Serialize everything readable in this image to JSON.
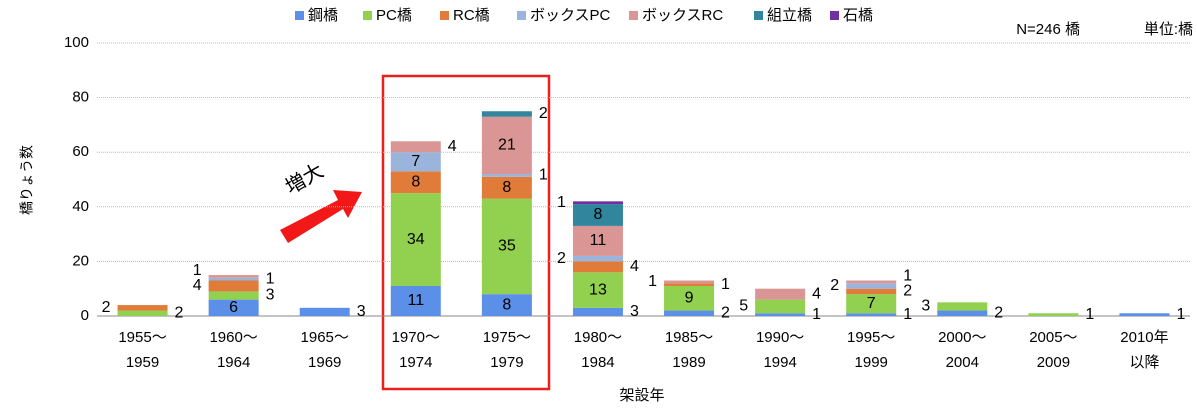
{
  "chart_data": {
    "type": "stacked-bar",
    "y_axis_label": "橋りょう数",
    "x_axis_label": "架設年",
    "annotations": [
      "N=246 橋",
      "単位:橋",
      "増大"
    ],
    "categories": [
      [
        "1955〜",
        "1959"
      ],
      [
        "1960〜",
        "1964"
      ],
      [
        "1965〜",
        "1969"
      ],
      [
        "1970〜",
        "1974"
      ],
      [
        "1975〜",
        "1979"
      ],
      [
        "1980〜",
        "1984"
      ],
      [
        "1985〜",
        "1989"
      ],
      [
        "1990〜",
        "1994"
      ],
      [
        "1995〜",
        "1999"
      ],
      [
        "2000〜",
        "2004"
      ],
      [
        "2005〜",
        "2009"
      ],
      [
        "2010年",
        "以降"
      ]
    ],
    "series": [
      {
        "name": "鋼橋",
        "color": "#5b8fe8",
        "values": [
          null,
          6,
          3,
          11,
          8,
          3,
          2,
          1,
          1,
          2,
          null,
          1
        ]
      },
      {
        "name": "PC橋",
        "color": "#92d050",
        "values": [
          2,
          3,
          null,
          34,
          35,
          13,
          9,
          5,
          7,
          3,
          1,
          null
        ]
      },
      {
        "name": "RC橋",
        "color": "#e07b39",
        "values": [
          2,
          4,
          null,
          8,
          8,
          4,
          1,
          null,
          2,
          null,
          null,
          null
        ]
      },
      {
        "name": "ボックスPC",
        "color": "#9bb4dc",
        "values": [
          null,
          1,
          null,
          7,
          1,
          2,
          null,
          null,
          2,
          null,
          null,
          null
        ]
      },
      {
        "name": "ボックスRC",
        "color": "#d99694",
        "values": [
          null,
          1,
          null,
          4,
          21,
          11,
          1,
          4,
          1,
          null,
          null,
          null
        ]
      },
      {
        "name": "組立橋",
        "color": "#31859c",
        "values": [
          null,
          null,
          null,
          null,
          2,
          8,
          null,
          null,
          null,
          null,
          null,
          null
        ]
      },
      {
        "name": "石橋",
        "color": "#7030a0",
        "values": [
          null,
          null,
          null,
          null,
          null,
          1,
          null,
          null,
          null,
          null,
          null,
          null
        ]
      }
    ],
    "ylim": [
      0,
      100
    ],
    "yticks": [
      0,
      20,
      40,
      60,
      80,
      100
    ],
    "grid": true
  }
}
